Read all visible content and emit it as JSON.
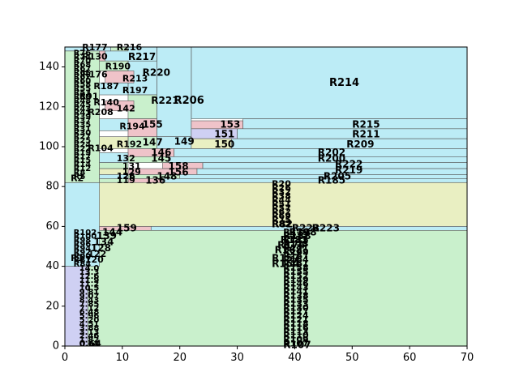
{
  "chart_data": {
    "type": "treemap-rectangles",
    "xlim": [
      0,
      70
    ],
    "ylim": [
      0,
      150
    ],
    "x_ticks": [
      0,
      10,
      20,
      30,
      40,
      50,
      60,
      70
    ],
    "y_ticks": [
      0,
      20,
      40,
      60,
      80,
      100,
      120,
      140
    ],
    "palette": {
      "blue": "#bcecf6",
      "green": "#c9f0cc",
      "yellow": "#e9efc2",
      "pink": "#efc3c9",
      "purple": "#cfd0f3"
    },
    "rects": [
      {
        "label": "R214",
        "x": 22,
        "y": 114,
        "w": 48,
        "h": 36,
        "color": "blue",
        "lx": 46,
        "ly": 132,
        "fs": 13
      },
      {
        "label": "R206",
        "x": 16,
        "y": 105,
        "w": 6,
        "h": 45,
        "color": "blue",
        "lx": 19,
        "ly": 123,
        "fs": 13
      },
      {
        "label": "R220",
        "x": 11,
        "y": 126,
        "w": 5,
        "h": 24,
        "color": "blue",
        "lx": 13.5,
        "ly": 137,
        "fs": 12
      },
      {
        "label": "R217",
        "x": 7,
        "y": 143,
        "w": 9,
        "h": 7,
        "color": "blue",
        "lx": 11,
        "ly": 145,
        "fs": 12
      },
      {
        "label": "R216",
        "x": 8,
        "y": 148,
        "w": 3,
        "h": 2,
        "color": "green",
        "lx": 9,
        "ly": 149.5,
        "fs": 11
      },
      {
        "label": "R177",
        "x": 0,
        "y": 148,
        "w": 8,
        "h": 2,
        "color": "blue",
        "lx": 3,
        "ly": 149.5,
        "fs": 11
      },
      {
        "label": "R130",
        "x": 0,
        "y": 143,
        "w": 7,
        "h": 5,
        "color": "pink",
        "lx": 3,
        "ly": 145,
        "fs": 11
      },
      {
        "label": "R190",
        "x": 4,
        "y": 138,
        "w": 7,
        "h": 5,
        "color": "green",
        "lx": 7,
        "ly": 140,
        "fs": 11
      },
      {
        "label": "R213",
        "x": 7,
        "y": 132,
        "w": 5,
        "h": 6,
        "color": "pink",
        "lx": 10,
        "ly": 134,
        "fs": 11
      },
      {
        "label": "R197",
        "x": 4,
        "y": 126,
        "w": 7,
        "h": 6,
        "color": "blue",
        "lx": 10,
        "ly": 128,
        "fs": 11
      },
      {
        "label": "R221",
        "x": 11,
        "y": 114,
        "w": 5,
        "h": 12,
        "color": "green",
        "lx": 15,
        "ly": 123,
        "fs": 12
      },
      {
        "label": "142",
        "x": 7,
        "y": 118,
        "w": 5,
        "h": 5,
        "color": "pink",
        "lx": 9,
        "ly": 119,
        "fs": 11
      },
      {
        "label": "155",
        "x": 11,
        "y": 105,
        "w": 5,
        "h": 9,
        "color": "pink",
        "lx": 13.5,
        "ly": 111,
        "fs": 12
      },
      {
        "label": "R194",
        "x": 6,
        "y": 108,
        "w": 5,
        "h": 6,
        "color": "blue",
        "lx": 9.5,
        "ly": 110,
        "fs": 11
      },
      {
        "label": "149",
        "x": 16,
        "y": 99,
        "w": 6,
        "h": 6,
        "color": "blue",
        "lx": 19,
        "ly": 102.5,
        "fs": 12
      },
      {
        "label": "147",
        "x": 11,
        "y": 99,
        "w": 5,
        "h": 6,
        "color": "green",
        "lx": 13.5,
        "ly": 102,
        "fs": 12
      },
      {
        "label": "R192",
        "x": 6,
        "y": 99,
        "w": 5,
        "h": 6,
        "color": "yellow",
        "lx": 9,
        "ly": 101,
        "fs": 11
      },
      {
        "label": "153",
        "x": 22,
        "y": 109,
        "w": 9,
        "h": 4,
        "color": "pink",
        "lx": 27,
        "ly": 111,
        "fs": 12
      },
      {
        "label": "151",
        "x": 22,
        "y": 104,
        "w": 8,
        "h": 5,
        "color": "purple",
        "lx": 26,
        "ly": 106,
        "fs": 12
      },
      {
        "label": "150",
        "x": 22,
        "y": 99,
        "w": 7,
        "h": 5,
        "color": "yellow",
        "lx": 26,
        "ly": 101,
        "fs": 12
      },
      {
        "label": "R215",
        "x": 31,
        "y": 109,
        "w": 39,
        "h": 5,
        "color": "blue",
        "lx": 50,
        "ly": 111,
        "fs": 12
      },
      {
        "label": "R211",
        "x": 30,
        "y": 104,
        "w": 40,
        "h": 5,
        "color": "blue",
        "lx": 50,
        "ly": 106,
        "fs": 12
      },
      {
        "label": "R209",
        "x": 29,
        "y": 99,
        "w": 41,
        "h": 5,
        "color": "blue",
        "lx": 49,
        "ly": 101,
        "fs": 12
      },
      {
        "label": "146",
        "x": 11,
        "y": 95,
        "w": 8,
        "h": 4,
        "color": "pink",
        "lx": 15,
        "ly": 97,
        "fs": 12
      },
      {
        "label": "145",
        "x": 11,
        "y": 92,
        "w": 7,
        "h": 3,
        "color": "green",
        "lx": 15,
        "ly": 94,
        "fs": 12
      },
      {
        "label": "132",
        "x": 6,
        "y": 92,
        "w": 5,
        "h": 5,
        "color": "blue",
        "lx": 9,
        "ly": 94,
        "fs": 11
      },
      {
        "label": "R202",
        "x": 19,
        "y": 95,
        "w": 51,
        "h": 4,
        "color": "blue",
        "lx": 44,
        "ly": 97,
        "fs": 12
      },
      {
        "label": "R200",
        "x": 18,
        "y": 92,
        "w": 52,
        "h": 3,
        "color": "blue",
        "lx": 44,
        "ly": 94,
        "fs": 12
      },
      {
        "label": "158",
        "x": 17,
        "y": 89,
        "w": 7,
        "h": 3,
        "color": "pink",
        "lx": 18,
        "ly": 90,
        "fs": 12
      },
      {
        "label": "R222",
        "x": 24,
        "y": 89,
        "w": 46,
        "h": 3,
        "color": "blue",
        "lx": 47,
        "ly": 91,
        "fs": 12
      },
      {
        "label": "131",
        "x": 6,
        "y": 89,
        "w": 5,
        "h": 3,
        "color": "green",
        "lx": 10,
        "ly": 90,
        "fs": 11
      },
      {
        "label": "156",
        "x": 11,
        "y": 86,
        "w": 12,
        "h": 3,
        "color": "pink",
        "lx": 18,
        "ly": 87,
        "fs": 12
      },
      {
        "label": "129",
        "x": 6,
        "y": 86,
        "w": 5,
        "h": 3,
        "color": "yellow",
        "lx": 10,
        "ly": 87,
        "fs": 11
      },
      {
        "label": "R219",
        "x": 23,
        "y": 86,
        "w": 47,
        "h": 3,
        "color": "blue",
        "lx": 47,
        "ly": 88,
        "fs": 12
      },
      {
        "label": "148",
        "x": 11,
        "y": 84,
        "w": 9,
        "h": 2,
        "color": "green",
        "lx": 16,
        "ly": 85,
        "fs": 12
      },
      {
        "label": "126",
        "x": 6,
        "y": 84,
        "w": 5,
        "h": 2,
        "color": "blue",
        "lx": 9,
        "ly": 85,
        "fs": 11
      },
      {
        "label": "R205",
        "x": 20,
        "y": 84,
        "w": 50,
        "h": 2,
        "color": "blue",
        "lx": 45,
        "ly": 85,
        "fs": 12
      },
      {
        "label": "136",
        "x": 11,
        "y": 82,
        "w": 6,
        "h": 2,
        "color": "pink",
        "lx": 14,
        "ly": 83,
        "fs": 12
      },
      {
        "label": "119",
        "x": 6,
        "y": 82,
        "w": 5,
        "h": 2,
        "color": "green",
        "lx": 9,
        "ly": 83,
        "fs": 11
      },
      {
        "label": "R185",
        "x": 17,
        "y": 82,
        "w": 53,
        "h": 2,
        "color": "blue",
        "lx": 44,
        "ly": 83,
        "fs": 12
      },
      {
        "label": "R82",
        "x": 0,
        "y": 60,
        "w": 70,
        "h": 22,
        "color": "yellow",
        "lx": 36,
        "ly": 61,
        "fs": 12
      },
      {
        "label": "159",
        "x": 6,
        "y": 58,
        "w": 9,
        "h": 2,
        "color": "pink",
        "lx": 9,
        "ly": 59,
        "fs": 12
      },
      {
        "label": "R223",
        "x": 15,
        "y": 58,
        "w": 55,
        "h": 2,
        "color": "blue",
        "lx": 43,
        "ly": 59,
        "fs": 12
      },
      {
        "label": "R107",
        "x": 4,
        "y": 0,
        "w": 66,
        "h": 58,
        "color": "green",
        "lx": 38,
        "ly": 0.5,
        "fs": 12
      },
      {
        "label": "0.64",
        "x": 0,
        "y": 0,
        "w": 4,
        "h": 40,
        "color": "purple",
        "lx": 2.5,
        "ly": 1,
        "fs": 11
      },
      {
        "label": "R1",
        "x": 0,
        "y": 40,
        "w": 6,
        "h": 42,
        "color": "blue",
        "lx": 1,
        "ly": 44,
        "fs": 11
      },
      {
        "label": "R2",
        "x": 0,
        "y": 82,
        "w": 6,
        "h": 66,
        "color": "green",
        "lx": 1,
        "ly": 84,
        "fs": 11
      }
    ],
    "stacks": [
      {
        "x": 0,
        "w": 6,
        "y0": 84,
        "y1": 148,
        "step": 2,
        "labels": [
          "R5",
          "R8",
          "R12",
          "R14",
          "R15",
          "R17",
          "R19",
          "R22",
          "R24",
          "R25",
          "R27",
          "R30",
          "R31",
          "R35",
          "R37",
          "R39",
          "R41",
          "R43",
          "R45",
          "R48",
          "R50",
          "R53",
          "R55",
          "R58",
          "R60",
          "R62",
          "R65",
          "R67",
          "R68",
          "R70",
          "R74",
          "R76"
        ],
        "color": "pink",
        "lx": 1.5,
        "fs": 10
      },
      {
        "x": 0,
        "w": 6,
        "y0": 40,
        "y1": 58,
        "step": 2,
        "labels": [
          "R84",
          "R87",
          "R90",
          "R92",
          "R94",
          "R96",
          "R98",
          "R100",
          "R102"
        ],
        "color": "blue",
        "lx": 1.5,
        "fs": 10
      },
      {
        "x": 0,
        "w": 70,
        "y0": 60,
        "y1": 82,
        "step": 2,
        "labels": [
          "R82",
          "R75",
          "R69",
          "R62",
          "R57",
          "R51",
          "R44",
          "R38",
          "R32",
          "R26",
          "R20"
        ],
        "color": "yellow",
        "lx": 36,
        "fs": 11
      },
      {
        "x": 4,
        "w": 66,
        "y0": 0,
        "y1": 58,
        "step": 2,
        "labels": [
          "R107",
          "R109",
          "R110",
          "R113",
          "R116",
          "R118",
          "R121",
          "R124",
          "R127",
          "R130",
          "R133",
          "R135",
          "R138",
          "R141",
          "R143",
          "R146",
          "R149",
          "R152",
          "R155",
          "R158",
          "R161",
          "R164",
          "R167",
          "R169",
          "R171",
          "R173",
          "R175",
          "R177",
          "R179"
        ],
        "color": "green",
        "lx": 38,
        "fs": 11
      },
      {
        "x": 0,
        "w": 4,
        "y0": 0,
        "y1": 40,
        "step": 2,
        "labels": [
          "0.64",
          "1.82",
          "2.46",
          "3.13",
          "3.88",
          "4.51",
          "5.20",
          "5.96",
          "6.48",
          "7.12",
          "7.85",
          "8.43",
          "9.07",
          "9.81",
          "10.5",
          "11.2",
          "11.9",
          "12.6",
          "13.3",
          "14.0"
        ],
        "color": "purple",
        "lx": 2.5,
        "fs": 10
      }
    ],
    "tall_labels": [
      {
        "label": "R223",
        "x": 39.5,
        "y": 59,
        "fs": 12
      },
      {
        "label": "R198",
        "x": 39,
        "y": 57,
        "fs": 12
      },
      {
        "label": "R188",
        "x": 38,
        "y": 55,
        "fs": 12
      },
      {
        "label": "R181",
        "x": 37.5,
        "y": 53,
        "fs": 12
      },
      {
        "label": "R174",
        "x": 37,
        "y": 50.5,
        "fs": 12
      },
      {
        "label": "R168",
        "x": 36.5,
        "y": 48,
        "fs": 12
      },
      {
        "label": "R157",
        "x": 36,
        "y": 44,
        "fs": 12
      },
      {
        "label": "R154",
        "x": 36,
        "y": 41,
        "fs": 12
      },
      {
        "label": "144",
        "x": 6.5,
        "y": 57,
        "fs": 12
      },
      {
        "label": "139",
        "x": 5.5,
        "y": 55,
        "fs": 12
      },
      {
        "label": "134",
        "x": 5,
        "y": 52,
        "fs": 12
      },
      {
        "label": "128",
        "x": 4.5,
        "y": 49,
        "fs": 12
      },
      {
        "label": "122",
        "x": 4,
        "y": 46,
        "fs": 11
      },
      {
        "label": "120",
        "x": 3.5,
        "y": 43,
        "fs": 11
      },
      {
        "label": "R208",
        "x": 4,
        "y": 117,
        "fs": 11
      },
      {
        "label": "R187",
        "x": 5,
        "y": 130,
        "fs": 11
      },
      {
        "label": "R176",
        "x": 3,
        "y": 136,
        "fs": 11
      },
      {
        "label": "R140",
        "x": 5,
        "y": 122,
        "fs": 11
      },
      {
        "label": "R104",
        "x": 4,
        "y": 99,
        "fs": 11
      },
      {
        "label": "R91",
        "x": 2.5,
        "y": 125,
        "fs": 11
      }
    ]
  }
}
